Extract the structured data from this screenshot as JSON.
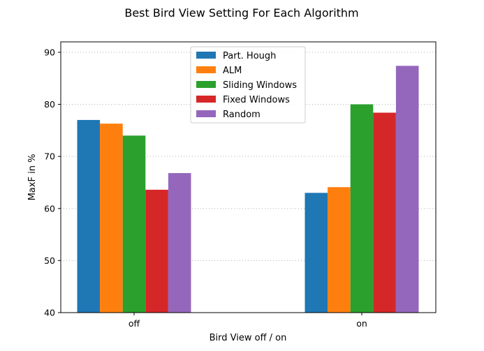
{
  "chart_data": {
    "type": "bar",
    "title": "Best Bird View Setting For Each Algorithm",
    "xlabel": "Bird View off / on",
    "ylabel": "MaxF in %",
    "categories": [
      "off",
      "on"
    ],
    "series": [
      {
        "name": "Part. Hough",
        "color": "#1f77b4",
        "values": [
          77.0,
          63.0
        ]
      },
      {
        "name": "ALM",
        "color": "#ff7f0e",
        "values": [
          76.3,
          64.1
        ]
      },
      {
        "name": "Sliding Windows",
        "color": "#2ca02c",
        "values": [
          74.0,
          80.0
        ]
      },
      {
        "name": "Fixed Windows",
        "color": "#d62728",
        "values": [
          63.6,
          78.4
        ]
      },
      {
        "name": "Random",
        "color": "#9467bd",
        "values": [
          66.8,
          87.4
        ]
      }
    ],
    "ylim": [
      40,
      92
    ],
    "yticks": [
      40,
      50,
      60,
      70,
      80,
      90
    ],
    "grid": true,
    "legend_position": "top-center"
  }
}
